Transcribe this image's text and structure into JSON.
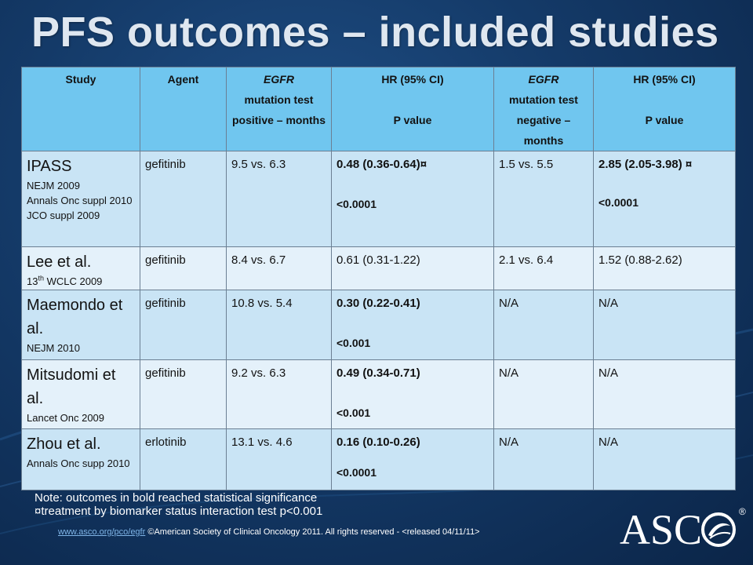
{
  "title": "PFS outcomes – included studies",
  "table": {
    "headers": {
      "study": "Study",
      "agent": "Agent",
      "egfr_pos": "EGFR",
      "egfr_pos_rest": "mutation test positive – months",
      "hr1_line1": "HR (95% CI)",
      "hr1_line2": "P value",
      "egfr_neg": "EGFR",
      "egfr_neg_rest": "mutation test negative – months",
      "hr2_line1": "HR (95% CI)",
      "hr2_line2": "P value"
    },
    "rows": [
      {
        "study": "IPASS",
        "refs": [
          "NEJM 2009",
          "Annals Onc suppl 2010",
          "JCO suppl 2009"
        ],
        "agent": "gefitinib",
        "pos": "9.5 vs. 6.3",
        "hr1": "0.48 (0.36-0.64)¤",
        "p1": "<0.0001",
        "neg": "1.5 vs. 5.5",
        "hr2": "2.85 (2.05-3.98) ¤",
        "p2": "<0.0001"
      },
      {
        "study": "Lee et al.",
        "refs_sup_pre": "13",
        "refs_sup": "th",
        "refs_post": " WCLC 2009",
        "agent": "gefitinib",
        "pos": "8.4 vs. 6.7",
        "hr1": "0.61 (0.31-1.22)",
        "neg": "2.1 vs. 6.4",
        "hr2": "1.52 (0.88-2.62)"
      },
      {
        "study": "Maemondo et al.",
        "refs": [
          "NEJM 2010"
        ],
        "agent": "gefitinib",
        "pos": "10.8 vs. 5.4",
        "hr1": "0.30 (0.22-0.41)",
        "p1": "<0.001",
        "neg": "N/A",
        "hr2": "N/A"
      },
      {
        "study": "Mitsudomi et al.",
        "refs": [
          "Lancet Onc 2009"
        ],
        "agent": "gefitinib",
        "pos": "9.2 vs. 6.3",
        "hr1": "0.49 (0.34-0.71)",
        "p1": "<0.001",
        "neg": "N/A",
        "hr2": "N/A"
      },
      {
        "study": "Zhou et al.",
        "refs": [
          "Annals Onc supp 2010"
        ],
        "agent": "erlotinib",
        "pos": "13.1 vs. 4.6",
        "hr1": "0.16 (0.10-0.26)",
        "p1": "<0.0001",
        "neg": "N/A",
        "hr2": "N/A"
      }
    ]
  },
  "notes": {
    "line1": "Note:  outcomes in bold reached statistical significance",
    "line2": "¤treatment by biomarker status interaction test p<0.001"
  },
  "footer": {
    "link": "www.asco.org/pco/egfr",
    "copyright": "  ©American Society of Clinical Oncology 2011.  All rights reserved - <released 04/11/11>"
  },
  "logo": {
    "text": "ASC",
    "reg": "®",
    "icon": "asco-globe-icon"
  },
  "colors": {
    "header_bg": "#70c6ef",
    "row_odd": "#c9e4f5",
    "row_even": "#e4f1fa",
    "background": "#143a68"
  }
}
